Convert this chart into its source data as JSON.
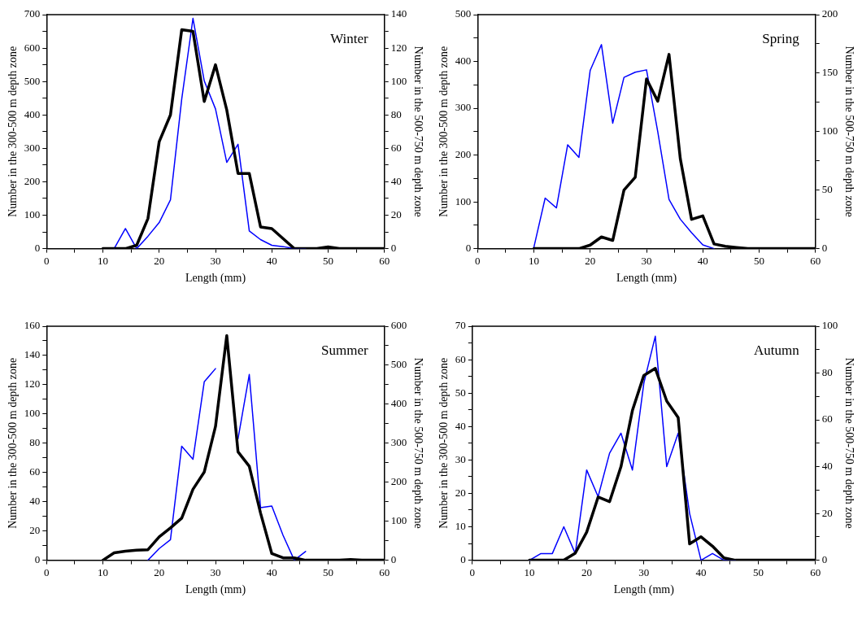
{
  "chart_data": [
    {
      "type": "line",
      "title": "Winter",
      "xlabel": "Length (mm)",
      "ylabel": "Number in the 300-500 m depth zone",
      "y2label": "Number in the 500-750 m depth zone",
      "legend": false,
      "grid": false,
      "marker": "none",
      "line_style": "solid",
      "x": [
        10,
        12,
        14,
        16,
        18,
        20,
        22,
        24,
        26,
        28,
        30,
        32,
        34,
        36,
        38,
        40,
        42,
        44,
        46,
        48,
        50,
        52,
        54,
        56,
        58,
        60
      ],
      "xlim": [
        0,
        60
      ],
      "xticks": [
        0,
        {
          "value": 5,
          "label": null
        },
        10,
        {
          "value": 15,
          "label": null
        },
        20,
        {
          "value": 25,
          "label": null
        },
        30,
        {
          "value": 35,
          "label": null
        },
        40,
        {
          "value": 45,
          "label": null
        },
        50,
        {
          "value": 55,
          "label": null
        },
        60
      ],
      "ylim": [
        0,
        700
      ],
      "yticks": [
        0,
        {
          "value": 50,
          "label": null
        },
        100,
        {
          "value": 150,
          "label": null
        },
        200,
        {
          "value": 250,
          "label": null
        },
        300,
        {
          "value": 350,
          "label": null
        },
        400,
        {
          "value": 450,
          "label": null
        },
        500,
        {
          "value": 550,
          "label": null
        },
        600,
        {
          "value": 650,
          "label": null
        },
        700
      ],
      "y2lim": [
        0,
        140
      ],
      "y2ticks": [
        0,
        {
          "value": 10,
          "label": null
        },
        20,
        {
          "value": 30,
          "label": null
        },
        40,
        {
          "value": 50,
          "label": null
        },
        60,
        {
          "value": 70,
          "label": null
        },
        80,
        {
          "value": 90,
          "label": null
        },
        100,
        {
          "value": 110,
          "label": null
        },
        120,
        {
          "value": 130,
          "label": null
        },
        140
      ],
      "series": [
        {
          "color": "#0000ff",
          "values": [
            null,
            0,
            60,
            0,
            37,
            78,
            146,
            447,
            689,
            502,
            418,
            258,
            312,
            53,
            27,
            10,
            6,
            0,
            0,
            null,
            null,
            null,
            null,
            null,
            null,
            null
          ]
        },
        {
          "color": "#000000",
          "axis": "y2",
          "values": [
            0,
            0,
            0,
            2,
            18,
            64,
            80,
            131,
            130,
            88,
            110,
            83,
            45,
            45,
            13,
            12,
            6,
            0,
            0,
            0,
            1,
            0,
            0,
            0,
            0,
            0
          ]
        }
      ]
    },
    {
      "type": "line",
      "title": "Spring",
      "xlabel": "Length (mm)",
      "ylabel": "Number in the 300-500 m depth zone",
      "y2label": "Number in the 500-750 m depth zone",
      "legend": false,
      "grid": false,
      "marker": "none",
      "line_style": "solid",
      "x": [
        10,
        12,
        14,
        16,
        18,
        20,
        22,
        24,
        26,
        28,
        30,
        32,
        34,
        36,
        38,
        40,
        42,
        44,
        46,
        48,
        50,
        52,
        54,
        56,
        58,
        60
      ],
      "xlim": [
        0,
        60
      ],
      "xticks": [
        0,
        {
          "value": 5,
          "label": null
        },
        10,
        {
          "value": 15,
          "label": null
        },
        20,
        {
          "value": 25,
          "label": null
        },
        30,
        {
          "value": 35,
          "label": null
        },
        40,
        {
          "value": 45,
          "label": null
        },
        50,
        {
          "value": 55,
          "label": null
        },
        60
      ],
      "ylim": [
        0,
        500
      ],
      "yticks": [
        0,
        {
          "value": 50,
          "label": null
        },
        100,
        {
          "value": 150,
          "label": null
        },
        200,
        {
          "value": 250,
          "label": null
        },
        300,
        {
          "value": 350,
          "label": null
        },
        400,
        {
          "value": 450,
          "label": null
        },
        500
      ],
      "y2lim": [
        0,
        200
      ],
      "y2ticks": [
        0,
        {
          "value": 25,
          "label": null
        },
        50,
        {
          "value": 75,
          "label": null
        },
        100,
        {
          "value": 125,
          "label": null
        },
        150,
        {
          "value": 175,
          "label": null
        },
        200
      ],
      "series": [
        {
          "color": "#0000ff",
          "values": [
            3,
            108,
            87,
            222,
            195,
            381,
            436,
            268,
            366,
            377,
            382,
            250,
            105,
            63,
            34,
            8,
            0,
            null,
            null,
            null,
            null,
            null,
            null,
            null,
            null,
            null
          ]
        },
        {
          "color": "#000000",
          "axis": "y2",
          "values": [
            0,
            0,
            0,
            0,
            0,
            3,
            10,
            7,
            50,
            61,
            145,
            126,
            166,
            77,
            25,
            28,
            4,
            2,
            1,
            0,
            0,
            0,
            0,
            0,
            0,
            0
          ]
        }
      ]
    },
    {
      "type": "line",
      "title": "Summer",
      "xlabel": "Length (mm)",
      "ylabel": "Number in the 300-500 m depth zone",
      "y2label": "Number in the 500-750 m depth zone",
      "legend": false,
      "grid": false,
      "marker": "none",
      "line_style": "solid",
      "x": [
        10,
        12,
        14,
        16,
        18,
        20,
        22,
        24,
        26,
        28,
        30,
        32,
        34,
        36,
        38,
        40,
        42,
        44,
        46,
        48,
        50,
        52,
        54,
        56,
        58,
        60
      ],
      "xlim": [
        0,
        60
      ],
      "xticks": [
        0,
        {
          "value": 5,
          "label": null
        },
        10,
        {
          "value": 15,
          "label": null
        },
        20,
        {
          "value": 25,
          "label": null
        },
        30,
        {
          "value": 35,
          "label": null
        },
        40,
        {
          "value": 45,
          "label": null
        },
        50,
        {
          "value": 55,
          "label": null
        },
        60
      ],
      "ylim": [
        0,
        160
      ],
      "yticks": [
        0,
        {
          "value": 10,
          "label": null
        },
        20,
        {
          "value": 30,
          "label": null
        },
        40,
        {
          "value": 50,
          "label": null
        },
        60,
        {
          "value": 70,
          "label": null
        },
        80,
        {
          "value": 90,
          "label": null
        },
        100,
        {
          "value": 110,
          "label": null
        },
        120,
        {
          "value": 130,
          "label": null
        },
        140,
        {
          "value": 150,
          "label": null
        },
        160
      ],
      "y2lim": [
        0,
        600
      ],
      "y2ticks": [
        0,
        {
          "value": 50,
          "label": null
        },
        100,
        {
          "value": 150,
          "label": null
        },
        200,
        {
          "value": 250,
          "label": null
        },
        300,
        {
          "value": 350,
          "label": null
        },
        400,
        {
          "value": 450,
          "label": null
        },
        500,
        {
          "value": 550,
          "label": null
        },
        600
      ],
      "series": [
        {
          "color": "#0000ff",
          "values": [
            null,
            null,
            null,
            null,
            0,
            8,
            14,
            78,
            69,
            122,
            131,
            null,
            83,
            127,
            36,
            37,
            17,
            0,
            6,
            null,
            null,
            null,
            null,
            null,
            null,
            null
          ]
        },
        {
          "color": "#000000",
          "axis": "y2",
          "values": [
            0,
            19,
            23,
            26,
            27,
            60,
            83,
            108,
            182,
            226,
            343,
            576,
            278,
            241,
            121,
            17,
            6,
            6,
            0,
            0,
            0,
            0,
            2,
            0,
            0,
            0
          ]
        }
      ]
    },
    {
      "type": "line",
      "title": "Autumn",
      "xlabel": "Length (mm)",
      "ylabel": "Number in the 300-500 m depth zone",
      "y2label": "Number in the 500-750 m depth zone",
      "legend": false,
      "grid": false,
      "marker": "none",
      "line_style": "solid",
      "x": [
        10,
        12,
        14,
        16,
        18,
        20,
        22,
        24,
        26,
        28,
        30,
        32,
        34,
        36,
        38,
        40,
        42,
        44,
        46,
        48,
        50,
        52,
        54,
        56,
        58,
        60
      ],
      "xlim": [
        0,
        60
      ],
      "xticks": [
        0,
        {
          "value": 5,
          "label": null
        },
        10,
        {
          "value": 15,
          "label": null
        },
        20,
        {
          "value": 25,
          "label": null
        },
        30,
        {
          "value": 35,
          "label": null
        },
        40,
        {
          "value": 45,
          "label": null
        },
        50,
        {
          "value": 55,
          "label": null
        },
        60
      ],
      "ylim": [
        0,
        70
      ],
      "yticks": [
        0,
        {
          "value": 5,
          "label": null
        },
        10,
        {
          "value": 15,
          "label": null
        },
        20,
        {
          "value": 25,
          "label": null
        },
        30,
        {
          "value": 35,
          "label": null
        },
        40,
        {
          "value": 45,
          "label": null
        },
        50,
        {
          "value": 55,
          "label": null
        },
        60,
        {
          "value": 65,
          "label": null
        },
        70
      ],
      "y2lim": [
        0,
        100
      ],
      "y2ticks": [
        0,
        {
          "value": 10,
          "label": null
        },
        20,
        {
          "value": 30,
          "label": null
        },
        40,
        {
          "value": 50,
          "label": null
        },
        60,
        {
          "value": 70,
          "label": null
        },
        80,
        {
          "value": 90,
          "label": null
        },
        100
      ],
      "series": [
        {
          "color": "#0000ff",
          "values": [
            0,
            2,
            2,
            10,
            2,
            27,
            19,
            32,
            38,
            27,
            53,
            67,
            28,
            38,
            14,
            0,
            2,
            0,
            0,
            null,
            null,
            null,
            null,
            null,
            null,
            null
          ]
        },
        {
          "color": "#000000",
          "axis": "y2",
          "values": [
            0,
            0,
            0,
            0,
            3,
            12,
            27,
            25,
            40,
            64,
            79,
            82,
            68,
            61,
            7,
            10,
            6,
            1,
            0,
            0,
            0,
            0,
            0,
            0,
            0,
            0
          ]
        }
      ]
    }
  ]
}
